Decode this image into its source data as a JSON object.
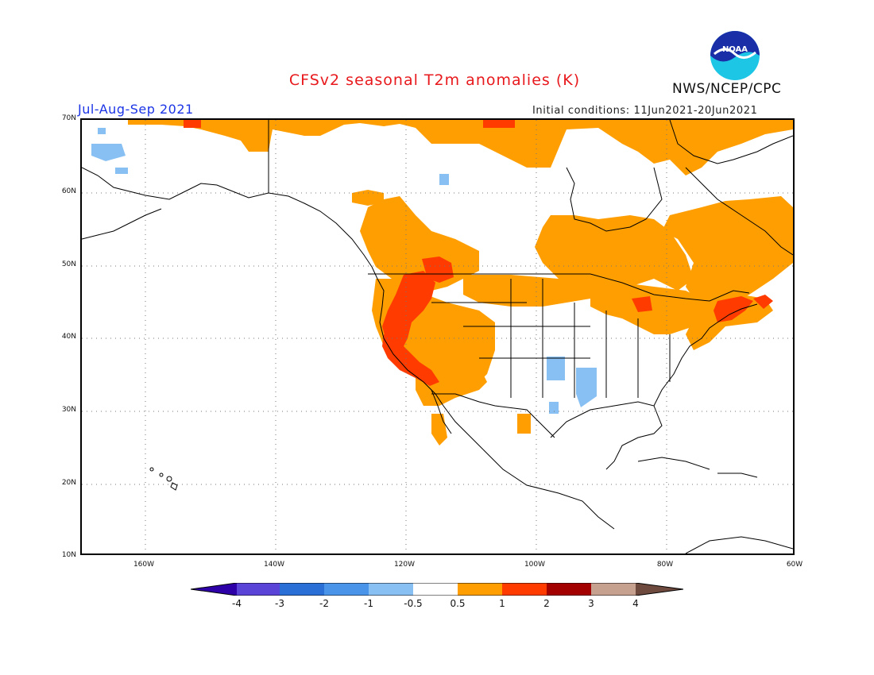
{
  "header": {
    "title": "CFSv2 seasonal T2m anomalies (K)",
    "season": "Jul-Aug-Sep 2021",
    "initial_conditions": "Initial conditions: 11Jun2021-20Jun2021",
    "agency": "NWS/NCEP/CPC",
    "logo_text": "NOAA"
  },
  "map": {
    "lat_labels": [
      "70N",
      "60N",
      "50N",
      "40N",
      "30N",
      "20N",
      "10N"
    ],
    "lon_labels": [
      "160W",
      "140W",
      "120W",
      "100W",
      "80W",
      "60W"
    ],
    "lat_range": [
      10,
      70
    ],
    "lon_range": [
      -170,
      -60
    ],
    "grid": "dotted"
  },
  "colorbar": {
    "labels": [
      "-4",
      "-3",
      "-2",
      "-1",
      "-0.5",
      "0.5",
      "1",
      "2",
      "3",
      "4"
    ],
    "colors": [
      "#2d00a8",
      "#5a44d8",
      "#2a6fd6",
      "#4a95ea",
      "#88c0f3",
      "#ffffff",
      "#ff9e00",
      "#ff3b00",
      "#a30000",
      "#c7a190",
      "#6e4a3e"
    ]
  },
  "anomaly_regions": [
    {
      "level": "0.5-1",
      "color": "#ff9e00",
      "desc": "Canada/Alaska north coast"
    },
    {
      "level": "0.5-1",
      "color": "#ff9e00",
      "desc": "Eastern Canada"
    },
    {
      "level": "0.5-1",
      "color": "#ff9e00",
      "desc": "Western US and BC"
    },
    {
      "level": "0.5-1",
      "color": "#ff9e00",
      "desc": "Great Lakes and Northeast US"
    },
    {
      "level": "1-2",
      "color": "#ff3b00",
      "desc": "Pacific Northwest to California"
    },
    {
      "level": "1-2",
      "color": "#ff3b00",
      "desc": "New England"
    },
    {
      "level": "-1--0.5",
      "color": "#88c0f3",
      "desc": "Southern Plains / Texas"
    },
    {
      "level": "-1--0.5",
      "color": "#88c0f3",
      "desc": "Western Alaska"
    }
  ]
}
